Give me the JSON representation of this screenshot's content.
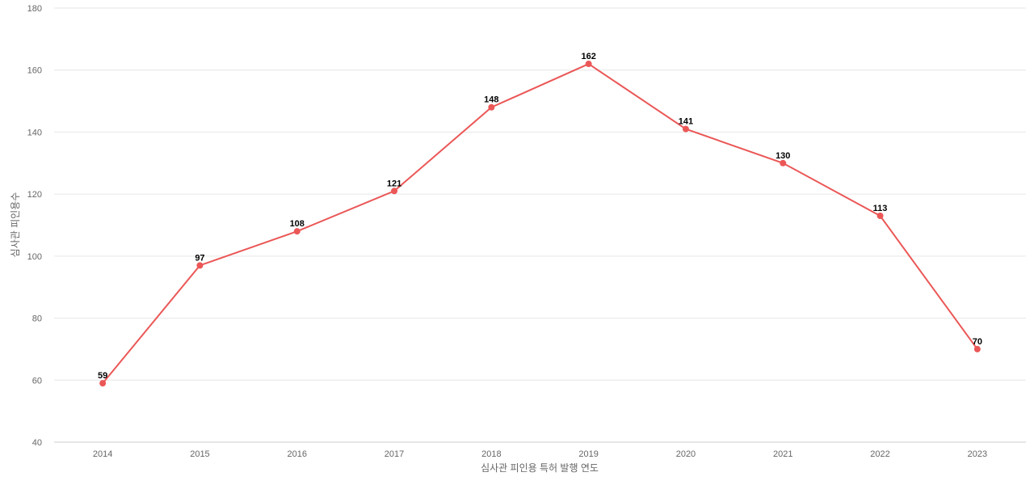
{
  "chart_data": {
    "type": "line",
    "categories": [
      "2014",
      "2015",
      "2016",
      "2017",
      "2018",
      "2019",
      "2020",
      "2021",
      "2022",
      "2023"
    ],
    "series": [
      {
        "values": [
          59,
          97,
          108,
          121,
          148,
          162,
          141,
          130,
          113,
          70
        ]
      }
    ],
    "xlabel": "심사관 피인용 특허 발행 연도",
    "ylabel": "심사관 피인용수",
    "ylim": [
      40,
      180
    ],
    "yticks": [
      40,
      60,
      80,
      100,
      120,
      140,
      160,
      180
    ],
    "grid": true,
    "colors": {
      "line": "#eb5757",
      "grid": "#e6e6e6",
      "axis": "#cccccc"
    }
  }
}
